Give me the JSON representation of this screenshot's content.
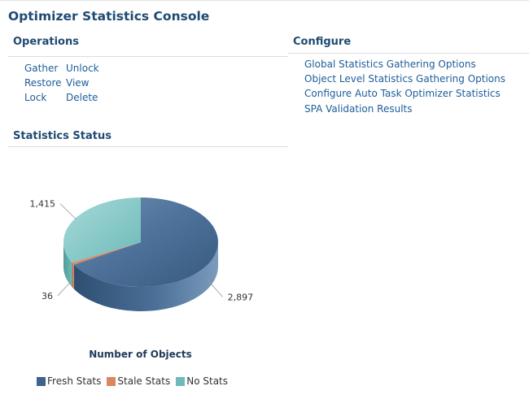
{
  "page": {
    "title": "Optimizer Statistics Console"
  },
  "operations": {
    "title": "Operations",
    "links": [
      "Gather",
      "Unlock",
      "Restore",
      "View",
      "Lock",
      "Delete"
    ]
  },
  "configure": {
    "title": "Configure",
    "links": [
      "Global Statistics Gathering Options",
      "Object Level Statistics Gathering Options",
      "Configure Auto Task Optimizer Statistics",
      "SPA Validation Results"
    ]
  },
  "status": {
    "title": "Statistics Status"
  },
  "chart_data": {
    "type": "pie",
    "title": "Number of Objects",
    "three_d": true,
    "categories": [
      "Fresh Stats",
      "Stale Stats",
      "No Stats"
    ],
    "values": [
      2897,
      36,
      1415
    ],
    "value_labels": [
      "2,897",
      "36",
      "1,415"
    ],
    "colors": [
      "#3e6289",
      "#d9875f",
      "#6dbab9"
    ],
    "legend_position": "bottom"
  }
}
